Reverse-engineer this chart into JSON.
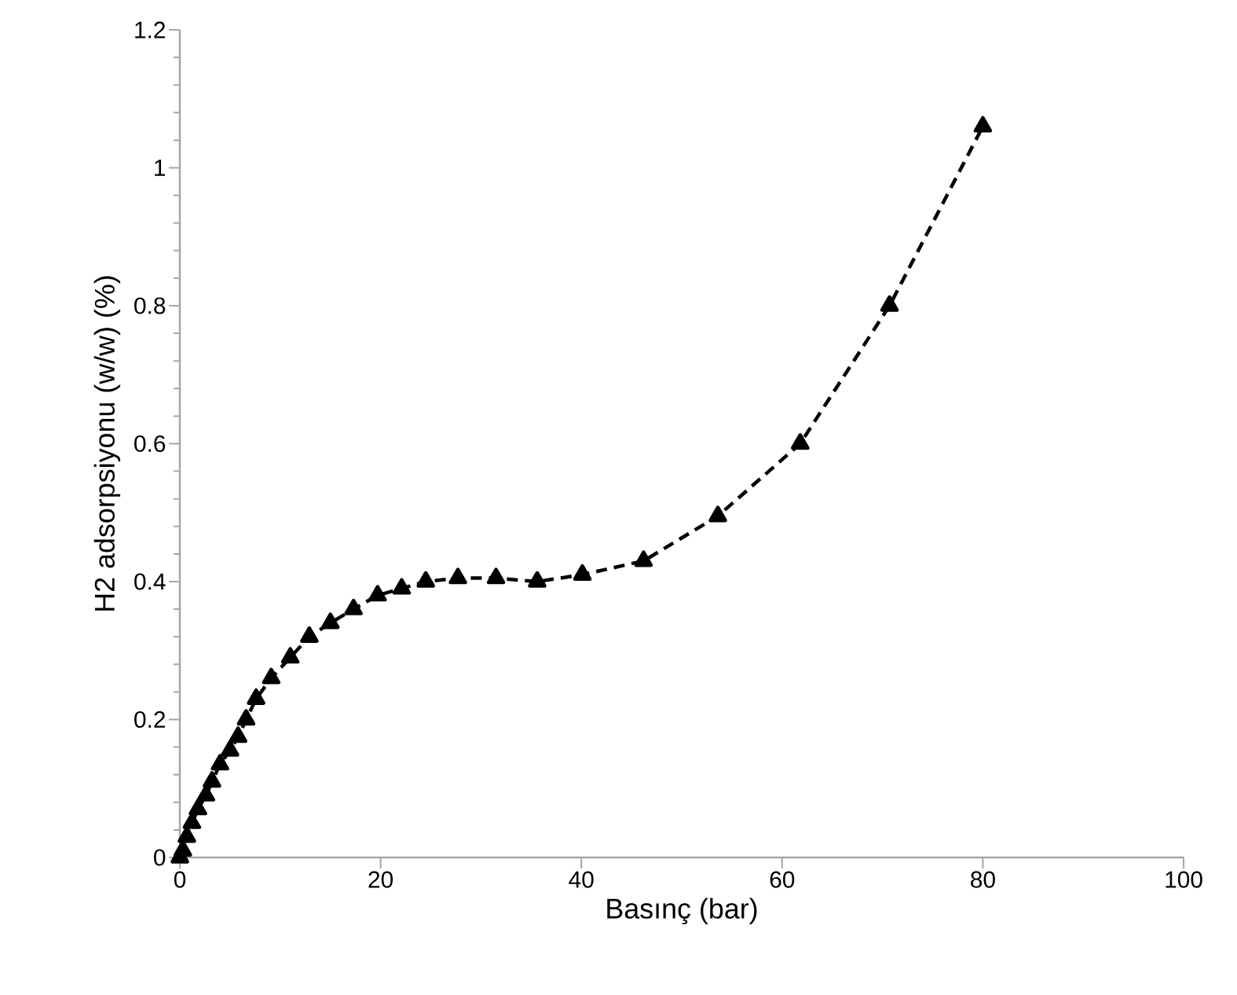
{
  "chart_data": {
    "type": "line",
    "xlabel": "Basınç (bar)",
    "ylabel": "H2 adsorpsiyonu (w/w) (%)",
    "x": [
      0,
      0.3,
      0.7,
      1.2,
      1.8,
      2.6,
      3.2,
      4,
      5,
      5.8,
      6.6,
      7.6,
      9.1,
      11,
      12.9,
      15,
      17.3,
      19.7,
      22.1,
      24.5,
      27.7,
      31.5,
      35.6,
      40.1,
      46.2,
      53.6,
      61.8,
      70.7,
      80
    ],
    "series": [
      {
        "color": "#000000",
        "values": [
          0,
          0.01,
          0.03,
          0.05,
          0.07,
          0.09,
          0.11,
          0.135,
          0.155,
          0.175,
          0.2,
          0.23,
          0.26,
          0.29,
          0.32,
          0.34,
          0.36,
          0.38,
          0.39,
          0.4,
          0.405,
          0.405,
          0.4,
          0.41,
          0.43,
          0.495,
          0.6,
          0.8,
          1.06
        ]
      }
    ],
    "xlim": [
      0,
      100
    ],
    "ylim": [
      0,
      1.2
    ],
    "xticks": [
      0,
      20,
      40,
      60,
      80,
      100
    ],
    "yticks": [
      0,
      0.2,
      0.4,
      0.6,
      0.8,
      1,
      1.2
    ],
    "marker": "triangle",
    "line_style": "dashed",
    "grid": false
  }
}
